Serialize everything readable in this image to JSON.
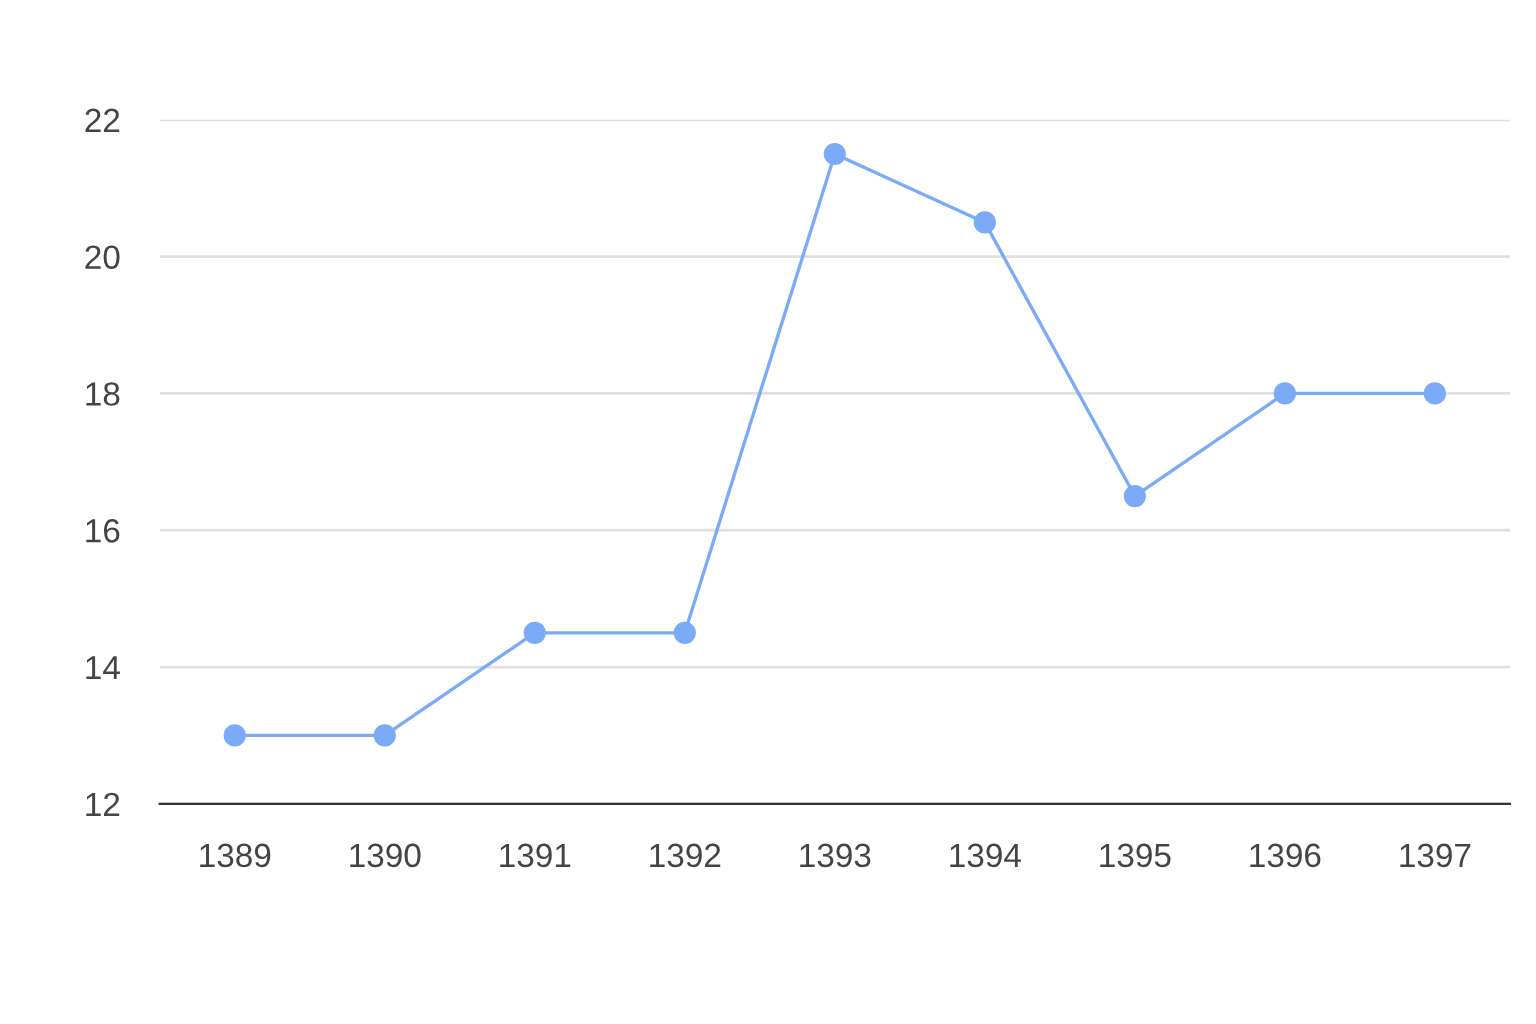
{
  "chart_data": {
    "type": "line",
    "categories": [
      "1389",
      "1390",
      "1391",
      "1392",
      "1393",
      "1394",
      "1395",
      "1396",
      "1397"
    ],
    "series": [
      {
        "color": "#7baaf7",
        "values": [
          13,
          13,
          14.5,
          14.5,
          21.5,
          20.5,
          16.5,
          18,
          18
        ]
      }
    ],
    "ylim": [
      12,
      22
    ],
    "yticks": [
      12,
      14,
      16,
      18,
      20,
      22
    ],
    "grid": "y",
    "marker": "circle",
    "line_style": "solid",
    "legend": false
  }
}
